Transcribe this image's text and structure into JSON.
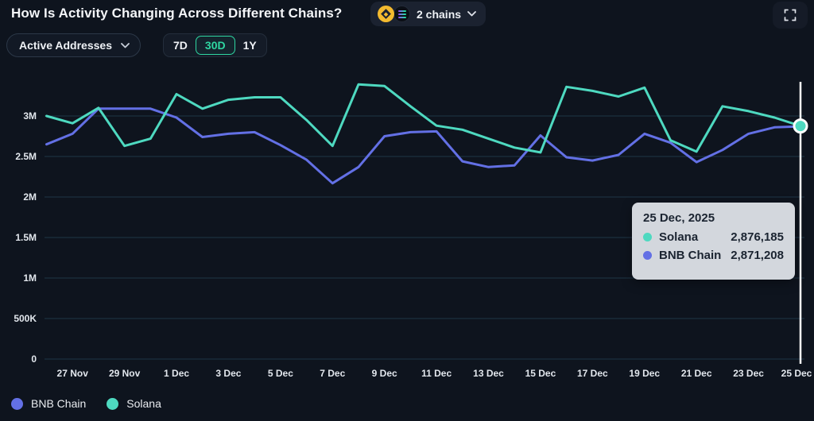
{
  "header": {
    "title": "How Is Activity Changing Across Different Chains?",
    "chains_selector": {
      "label": "2 chains",
      "icons": [
        "bnb-coin",
        "solana-coin"
      ]
    },
    "fullscreen_icon": "expand-corners"
  },
  "controls": {
    "metric_dropdown": {
      "value": "Active Addresses"
    },
    "ranges": [
      {
        "label": "7D",
        "active": false
      },
      {
        "label": "30D",
        "active": true
      },
      {
        "label": "1Y",
        "active": false
      }
    ]
  },
  "colors": {
    "background": "#0e141e",
    "solana": "#4ed9c0",
    "bnb": "#6370e5",
    "grid": "#1e3647",
    "axis_text": "#e2e7ed",
    "green_accent": "#2fd7a2",
    "tooltip_bg": "#d3d7dd",
    "crosshair": "#ffffff"
  },
  "chart_data": {
    "type": "line",
    "title": "Active Addresses per chain, last 30 days",
    "x": [
      "26 Nov",
      "27 Nov",
      "28 Nov",
      "29 Nov",
      "30 Nov",
      "1 Dec",
      "2 Dec",
      "3 Dec",
      "4 Dec",
      "5 Dec",
      "6 Dec",
      "7 Dec",
      "8 Dec",
      "9 Dec",
      "10 Dec",
      "11 Dec",
      "12 Dec",
      "13 Dec",
      "14 Dec",
      "15 Dec",
      "16 Dec",
      "17 Dec",
      "18 Dec",
      "19 Dec",
      "20 Dec",
      "21 Dec",
      "22 Dec",
      "23 Dec",
      "24 Dec",
      "25 Dec"
    ],
    "x_tick_labels": [
      "27 Nov",
      "29 Nov",
      "1 Dec",
      "3 Dec",
      "5 Dec",
      "7 Dec",
      "9 Dec",
      "11 Dec",
      "13 Dec",
      "15 Dec",
      "17 Dec",
      "19 Dec",
      "21 Dec",
      "23 Dec",
      "25 Dec"
    ],
    "y_ticks_millions": [
      0,
      0.5,
      1,
      1.5,
      2,
      2.5,
      3
    ],
    "y_tick_labels": [
      "0",
      "500K",
      "1M",
      "1.5M",
      "2M",
      "2.5M",
      "3M"
    ],
    "ylim_millions": [
      0,
      3.45
    ],
    "grid": "horizontal",
    "legend_position": "bottom-left",
    "series": [
      {
        "name": "BNB Chain",
        "color": "#6370e5",
        "values_millions": [
          2.65,
          2.78,
          3.09,
          3.09,
          3.09,
          2.98,
          2.74,
          2.78,
          2.8,
          2.64,
          2.46,
          2.17,
          2.37,
          2.75,
          2.8,
          2.81,
          2.44,
          2.37,
          2.39,
          2.76,
          2.49,
          2.45,
          2.52,
          2.78,
          2.67,
          2.43,
          2.58,
          2.78,
          2.86,
          2.871208
        ]
      },
      {
        "name": "Solana",
        "color": "#4ed9c0",
        "values_millions": [
          3.0,
          2.91,
          3.1,
          2.63,
          2.72,
          3.27,
          3.09,
          3.2,
          3.23,
          3.23,
          2.95,
          2.63,
          3.39,
          3.37,
          3.12,
          2.88,
          2.83,
          2.72,
          2.61,
          2.55,
          3.36,
          3.31,
          3.24,
          3.35,
          2.7,
          2.56,
          3.12,
          3.06,
          2.98,
          2.876185
        ]
      }
    ],
    "highlighted_point": {
      "date": "25 Dec",
      "series": "Solana"
    }
  },
  "tooltip": {
    "date": "25 Dec, 2025",
    "rows": [
      {
        "name": "Solana",
        "value": "2,876,185",
        "color": "#4ed9c0"
      },
      {
        "name": "BNB Chain",
        "value": "2,871,208",
        "color": "#6370e5"
      }
    ]
  },
  "legend": [
    {
      "label": "BNB Chain",
      "color": "#6370e5"
    },
    {
      "label": "Solana",
      "color": "#4ed9c0"
    }
  ]
}
